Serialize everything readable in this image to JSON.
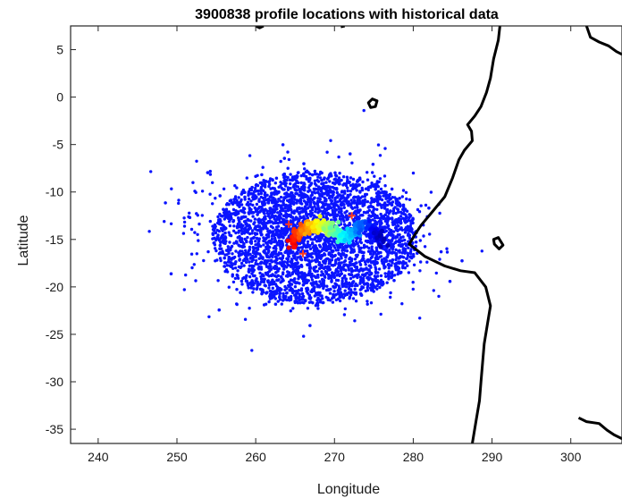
{
  "chart_data": {
    "type": "scatter",
    "title": "3900838 profile locations with historical data",
    "xlabel": "Longitude",
    "ylabel": "Latitude",
    "xlim": [
      236.5,
      306.5
    ],
    "ylim": [
      -36.5,
      7.5
    ],
    "xticks": [
      240,
      250,
      260,
      270,
      280,
      290,
      300
    ],
    "yticks": [
      5,
      0,
      -5,
      -10,
      -15,
      -20,
      -25,
      -30,
      -35
    ],
    "grid": false,
    "colors": {
      "historical": "#0a14ff",
      "coastline": "#000000",
      "profile_marker": "#ff3b1f"
    },
    "series": [
      {
        "kind": "historical_cloud",
        "color": "#0a14ff",
        "center": [
          267.5,
          -14.8
        ],
        "spread": [
          13.0,
          7.0
        ]
      },
      {
        "kind": "float_track",
        "colormap": "jet",
        "points": [
          [
            264.5,
            -15.2
          ],
          [
            265.0,
            -14.8
          ],
          [
            265.6,
            -14.3
          ],
          [
            266.2,
            -14.0
          ],
          [
            266.8,
            -13.8
          ],
          [
            267.4,
            -13.6
          ],
          [
            268.0,
            -13.5
          ],
          [
            268.6,
            -13.6
          ],
          [
            269.2,
            -13.9
          ],
          [
            269.8,
            -14.2
          ],
          [
            270.4,
            -14.5
          ],
          [
            271.0,
            -14.6
          ],
          [
            271.6,
            -14.7
          ],
          [
            272.2,
            -14.4
          ],
          [
            272.8,
            -14.0
          ],
          [
            273.4,
            -13.7
          ],
          [
            274.0,
            -13.6
          ],
          [
            274.8,
            -13.9
          ],
          [
            275.5,
            -14.6
          ],
          [
            276.2,
            -15.2
          ]
        ]
      },
      {
        "kind": "markers",
        "color": "#ff3b1f",
        "points": [
          [
            266.0,
            -16.5
          ],
          [
            272.2,
            -12.5
          ],
          [
            264.2,
            -13.4
          ]
        ]
      }
    ],
    "coastlines": [
      [
        [
          291.0,
          7.5
        ],
        [
          290.8,
          6.0
        ],
        [
          290.2,
          4.0
        ],
        [
          289.8,
          2.0
        ],
        [
          289.3,
          0.5
        ],
        [
          288.6,
          -1.0
        ],
        [
          287.8,
          -2.0
        ],
        [
          286.9,
          -2.9
        ],
        [
          287.4,
          -3.6
        ],
        [
          287.5,
          -4.6
        ],
        [
          286.5,
          -5.6
        ],
        [
          285.8,
          -6.6
        ],
        [
          285.0,
          -8.5
        ],
        [
          284.0,
          -10.5
        ],
        [
          282.5,
          -12.0
        ],
        [
          281.0,
          -13.5
        ],
        [
          280.2,
          -14.5
        ],
        [
          279.5,
          -15.5
        ],
        [
          281.5,
          -16.8
        ],
        [
          284.0,
          -17.8
        ],
        [
          286.0,
          -18.3
        ],
        [
          287.8,
          -18.5
        ],
        [
          289.2,
          -20.0
        ],
        [
          289.8,
          -22.0
        ],
        [
          289.4,
          -24.0
        ],
        [
          289.0,
          -26.0
        ],
        [
          288.8,
          -28.0
        ],
        [
          288.6,
          -30.0
        ],
        [
          288.4,
          -32.0
        ],
        [
          288.0,
          -34.0
        ],
        [
          287.5,
          -36.5
        ]
      ],
      [
        [
          302.0,
          7.5
        ],
        [
          302.5,
          6.3
        ],
        [
          303.6,
          5.8
        ],
        [
          304.8,
          5.4
        ],
        [
          305.8,
          4.8
        ],
        [
          306.5,
          4.5
        ]
      ],
      [
        [
          301.0,
          -33.8
        ],
        [
          302.0,
          -34.2
        ],
        [
          303.6,
          -34.4
        ],
        [
          304.6,
          -35.1
        ],
        [
          305.5,
          -35.6
        ],
        [
          306.5,
          -36.0
        ]
      ],
      [
        [
          260.0,
          7.5
        ],
        [
          260.5,
          7.3
        ],
        [
          261.0,
          7.5
        ]
      ],
      [
        [
          270.8,
          7.4
        ],
        [
          271.3,
          7.5
        ]
      ]
    ],
    "islands": [
      [
        [
          274.3,
          -0.6
        ],
        [
          274.8,
          -0.2
        ],
        [
          275.4,
          -0.4
        ],
        [
          275.2,
          -1.0
        ],
        [
          274.6,
          -1.1
        ],
        [
          274.3,
          -0.6
        ]
      ],
      [
        [
          290.2,
          -15.0
        ],
        [
          290.8,
          -14.8
        ],
        [
          291.4,
          -15.6
        ],
        [
          290.9,
          -16.0
        ],
        [
          290.3,
          -15.5
        ],
        [
          290.2,
          -15.0
        ]
      ]
    ]
  }
}
